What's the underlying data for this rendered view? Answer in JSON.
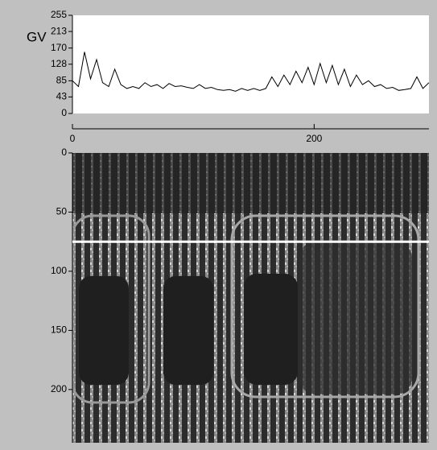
{
  "chart_data": [
    {
      "type": "line",
      "ylabel": "GV",
      "color": "#000000",
      "x": [
        0,
        5,
        10,
        15,
        20,
        25,
        30,
        35,
        40,
        45,
        50,
        55,
        60,
        65,
        70,
        75,
        80,
        85,
        90,
        95,
        100,
        105,
        110,
        115,
        120,
        125,
        130,
        135,
        140,
        145,
        150,
        155,
        160,
        165,
        170,
        175,
        180,
        185,
        190,
        195,
        200,
        205,
        210,
        215,
        220,
        225,
        230,
        235,
        240,
        245,
        250,
        255,
        260,
        265,
        270,
        275,
        280,
        285,
        290,
        295
      ],
      "values": [
        85,
        70,
        160,
        90,
        140,
        80,
        70,
        115,
        75,
        65,
        70,
        65,
        80,
        70,
        75,
        65,
        78,
        70,
        72,
        68,
        65,
        75,
        65,
        68,
        62,
        60,
        62,
        58,
        65,
        60,
        65,
        60,
        65,
        95,
        70,
        100,
        75,
        110,
        80,
        120,
        75,
        130,
        80,
        125,
        75,
        115,
        70,
        100,
        75,
        85,
        70,
        75,
        65,
        68,
        60,
        62,
        65,
        95,
        65,
        80
      ],
      "xlim": [
        0,
        295
      ],
      "xticks": [
        0,
        200
      ],
      "ylim": [
        0,
        255
      ],
      "yticks": [
        0,
        43,
        85,
        128,
        170,
        213,
        255
      ]
    },
    {
      "type": "image",
      "xlim": [
        0,
        295
      ],
      "ylim": [
        0,
        245
      ],
      "yticks": [
        0,
        50,
        100,
        150,
        200
      ],
      "profile_y": 75,
      "profile_color": "#ffffff"
    }
  ]
}
